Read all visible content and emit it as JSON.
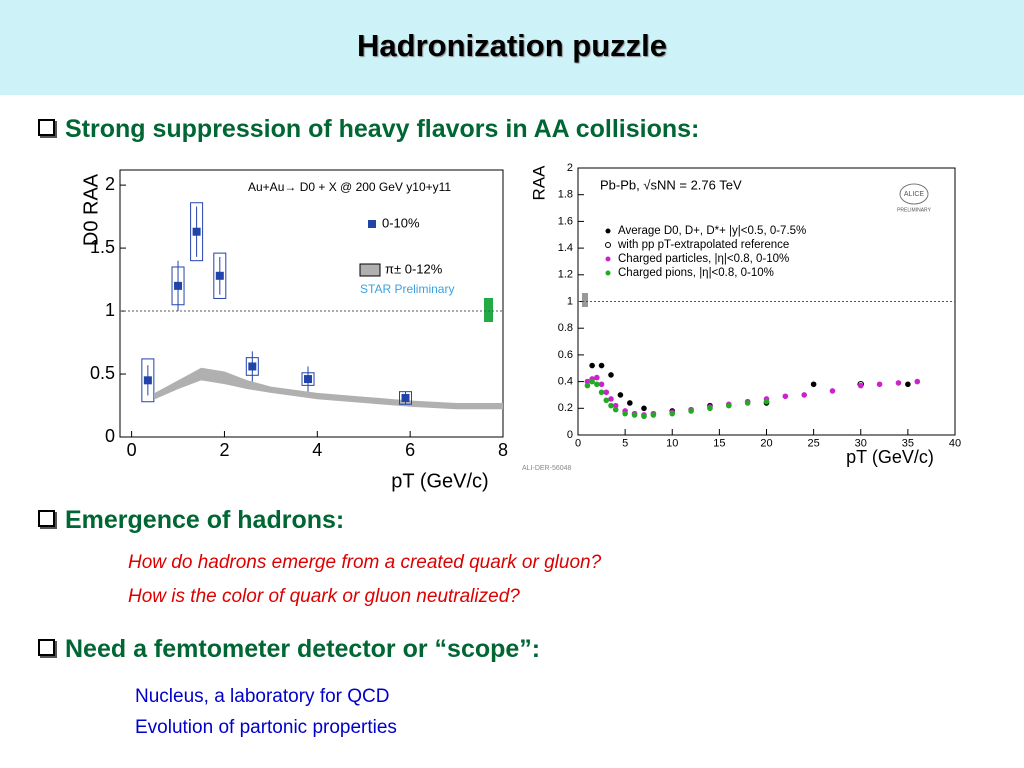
{
  "title": "Hadronization puzzle",
  "bullets": [
    {
      "text": "Strong suppression of heavy flavors in AA collisions:"
    },
    {
      "text": "Emergence of hadrons:",
      "lines": [
        "How do hadrons emerge from a created quark or gluon?",
        "How is the color of quark or gluon neutralized?"
      ]
    },
    {
      "text": "Need a femtometer detector or “scope”:",
      "lines": [
        "Nucleus, a laboratory for QCD",
        "Evolution of partonic properties"
      ]
    }
  ],
  "chart_data": [
    {
      "type": "scatter",
      "annotation": "Au+Au→ D0 + X @ 200 GeV y10+y11",
      "note": "STAR Preliminary",
      "x_label": "pT (GeV/c)",
      "y_label": "D0 RAA",
      "xlim": [
        -0.25,
        8
      ],
      "ylim": [
        0,
        2.12
      ],
      "xticks": [
        0,
        2,
        4,
        6,
        8
      ],
      "yticks": [
        0,
        0.5,
        1,
        1.5,
        2
      ],
      "reference_line": 1,
      "series": [
        {
          "name": "0-10%",
          "color": "#2244aa",
          "x": [
            0.35,
            1.0,
            1.4,
            1.9,
            2.6,
            3.8,
            5.9
          ],
          "values": [
            0.45,
            1.2,
            1.63,
            1.28,
            0.56,
            0.46,
            0.31
          ],
          "errors": [
            0.12,
            0.2,
            0.2,
            0.15,
            0.12,
            0.1,
            0.05
          ],
          "sys": [
            0.17,
            0.15,
            0.23,
            0.18,
            0.07,
            0.05,
            0.05
          ]
        }
      ],
      "band": {
        "name": "π± 0-12%",
        "color": "#b0b0b0",
        "x": [
          0.5,
          1,
          1.5,
          2,
          2.5,
          3,
          4,
          5,
          6,
          7,
          8
        ],
        "lower": [
          0.3,
          0.38,
          0.45,
          0.42,
          0.38,
          0.35,
          0.3,
          0.27,
          0.24,
          0.22,
          0.22
        ],
        "upper": [
          0.35,
          0.45,
          0.55,
          0.52,
          0.45,
          0.4,
          0.35,
          0.32,
          0.29,
          0.27,
          0.27
        ]
      }
    },
    {
      "type": "scatter",
      "annotation": "Pb-Pb, √sNN = 2.76 TeV",
      "note": "ALI-DER-56048",
      "logo": [
        "ALICE",
        "PRELIMINARY"
      ],
      "x_label": "pT (GeV/c)",
      "y_label": "RAA",
      "xlim": [
        0,
        40
      ],
      "ylim": [
        0,
        2
      ],
      "xticks": [
        0,
        5,
        10,
        15,
        20,
        25,
        30,
        35,
        40
      ],
      "yticks": [
        0,
        0.2,
        0.4,
        0.6,
        0.8,
        1,
        1.2,
        1.4,
        1.6,
        1.8,
        2
      ],
      "reference_line": 1,
      "series": [
        {
          "name": "Average D0, D+, D*+ |y|<0.5, 0-7.5%",
          "color": "#000000",
          "x": [
            1.5,
            2.5,
            3.5,
            4.5,
            5.5,
            7,
            10,
            14,
            20,
            25,
            30,
            35
          ],
          "values": [
            0.52,
            0.52,
            0.45,
            0.3,
            0.24,
            0.2,
            0.18,
            0.22,
            0.24,
            0.38,
            0.38,
            0.38
          ]
        },
        {
          "name": "with pp pT-extrapolated reference",
          "color": "#ffffff",
          "x": [
            30
          ],
          "values": [
            0.38
          ]
        },
        {
          "name": "Charged particles, |η|<0.8, 0-10%",
          "color": "#cc22cc",
          "x": [
            1,
            1.5,
            2,
            2.5,
            3,
            3.5,
            4,
            5,
            6,
            7,
            8,
            10,
            12,
            14,
            16,
            18,
            20,
            22,
            24,
            27,
            30,
            32,
            34,
            36
          ],
          "values": [
            0.4,
            0.42,
            0.43,
            0.38,
            0.32,
            0.27,
            0.22,
            0.18,
            0.16,
            0.15,
            0.16,
            0.17,
            0.19,
            0.21,
            0.23,
            0.25,
            0.27,
            0.29,
            0.3,
            0.33,
            0.37,
            0.38,
            0.39,
            0.4
          ]
        },
        {
          "name": "Charged pions, |η|<0.8, 0-10%",
          "color": "#22aa22",
          "x": [
            1,
            1.5,
            2,
            2.5,
            3,
            3.5,
            4,
            5,
            6,
            7,
            8,
            10,
            12,
            14,
            16,
            18,
            20
          ],
          "values": [
            0.37,
            0.4,
            0.38,
            0.32,
            0.26,
            0.22,
            0.19,
            0.16,
            0.15,
            0.14,
            0.15,
            0.16,
            0.18,
            0.2,
            0.22,
            0.24,
            0.25
          ]
        }
      ]
    }
  ]
}
